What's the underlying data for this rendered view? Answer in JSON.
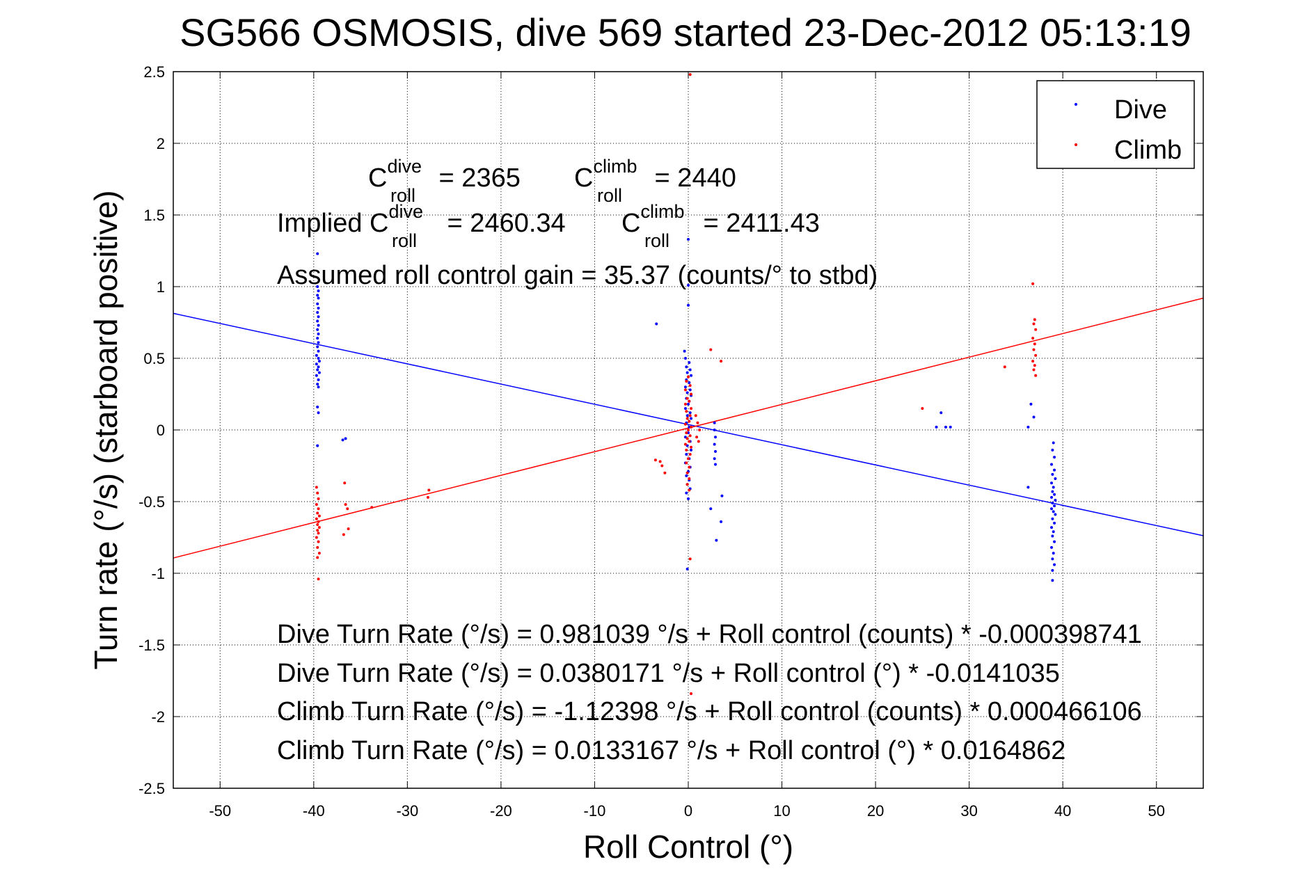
{
  "chart_data": {
    "type": "scatter",
    "title": "SG566 OSMOSIS, dive 569 started 23-Dec-2012 05:13:19",
    "xlabel": "Roll Control (°)",
    "ylabel": "Turn rate (°/s)  (starboard positive)",
    "xlim": [
      -55,
      55
    ],
    "ylim": [
      -2.5,
      2.5
    ],
    "xticks": [
      "-50",
      "-40",
      "-30",
      "-20",
      "-10",
      "0",
      "10",
      "20",
      "30",
      "40",
      "50"
    ],
    "yticks": [
      "-2.5",
      "-2",
      "-1.5",
      "-1",
      "-0.5",
      "0",
      "0.5",
      "1",
      "1.5",
      "2",
      "2.5"
    ],
    "grid": true,
    "legend": {
      "placement": "top-right",
      "entries": [
        {
          "name": "Dive",
          "color": "#0000ff"
        },
        {
          "name": "Climb",
          "color": "#ff0000"
        }
      ]
    },
    "series": [
      {
        "name": "Dive",
        "color": "#0000ff",
        "points": [
          [
            -39.6,
            1.23
          ],
          [
            -39.6,
            1.0
          ],
          [
            -39.5,
            0.97
          ],
          [
            -39.6,
            0.94
          ],
          [
            -39.5,
            0.92
          ],
          [
            -39.6,
            0.88
          ],
          [
            -39.5,
            0.85
          ],
          [
            -39.6,
            0.82
          ],
          [
            -39.5,
            0.79
          ],
          [
            -39.6,
            0.76
          ],
          [
            -39.5,
            0.73
          ],
          [
            -39.6,
            0.7
          ],
          [
            -39.5,
            0.67
          ],
          [
            -39.6,
            0.64
          ],
          [
            -39.5,
            0.61
          ],
          [
            -39.6,
            0.58
          ],
          [
            -39.5,
            0.55
          ],
          [
            -39.7,
            0.52
          ],
          [
            -39.5,
            0.5
          ],
          [
            -39.4,
            0.48
          ],
          [
            -39.7,
            0.46
          ],
          [
            -39.5,
            0.44
          ],
          [
            -39.6,
            0.42
          ],
          [
            -39.4,
            0.4
          ],
          [
            -39.7,
            0.38
          ],
          [
            -39.5,
            0.35
          ],
          [
            -39.6,
            0.32
          ],
          [
            -39.5,
            0.3
          ],
          [
            -39.6,
            0.16
          ],
          [
            -39.5,
            0.12
          ],
          [
            -39.6,
            -0.11
          ],
          [
            -36.9,
            -0.07
          ],
          [
            -36.6,
            -0.06
          ],
          [
            -3.4,
            0.74
          ],
          [
            0.0,
            1.33
          ],
          [
            0.0,
            1.01
          ],
          [
            0.0,
            0.87
          ],
          [
            -0.4,
            0.55
          ],
          [
            -0.3,
            0.5
          ],
          [
            0.1,
            0.47
          ],
          [
            -0.2,
            0.44
          ],
          [
            0.2,
            0.42
          ],
          [
            -0.1,
            0.4
          ],
          [
            0.3,
            0.38
          ],
          [
            -0.2,
            0.35
          ],
          [
            0.1,
            0.33
          ],
          [
            -0.3,
            0.3
          ],
          [
            0.2,
            0.28
          ],
          [
            -0.1,
            0.26
          ],
          [
            0.3,
            0.24
          ],
          [
            -0.2,
            0.22
          ],
          [
            0.1,
            0.2
          ],
          [
            0.0,
            0.18
          ],
          [
            -0.3,
            0.15
          ],
          [
            0.2,
            0.12
          ],
          [
            -0.1,
            0.1
          ],
          [
            0.3,
            0.08
          ],
          [
            -0.2,
            0.05
          ],
          [
            0.1,
            0.02
          ],
          [
            0.0,
            -0.02
          ],
          [
            -0.3,
            -0.05
          ],
          [
            0.2,
            -0.08
          ],
          [
            -0.1,
            -0.11
          ],
          [
            0.3,
            -0.14
          ],
          [
            -0.2,
            -0.17
          ],
          [
            0.1,
            -0.2
          ],
          [
            -0.3,
            -0.23
          ],
          [
            0.2,
            -0.26
          ],
          [
            0.0,
            -0.29
          ],
          [
            -0.2,
            -0.32
          ],
          [
            0.1,
            -0.35
          ],
          [
            -0.1,
            -0.38
          ],
          [
            0.2,
            -0.41
          ],
          [
            -0.2,
            -0.44
          ],
          [
            0.0,
            -0.48
          ],
          [
            -0.1,
            -0.97
          ],
          [
            2.8,
            0.05
          ],
          [
            2.8,
            0.0
          ],
          [
            2.9,
            -0.05
          ],
          [
            2.8,
            -0.1
          ],
          [
            2.9,
            -0.15
          ],
          [
            2.8,
            -0.2
          ],
          [
            2.9,
            -0.24
          ],
          [
            3.6,
            -0.46
          ],
          [
            2.4,
            -0.55
          ],
          [
            3.5,
            -0.64
          ],
          [
            3.0,
            -0.77
          ],
          [
            26.5,
            0.02
          ],
          [
            27.0,
            0.12
          ],
          [
            27.5,
            0.02
          ],
          [
            28.0,
            0.02
          ],
          [
            36.3,
            0.02
          ],
          [
            36.6,
            0.18
          ],
          [
            36.9,
            0.09
          ],
          [
            36.3,
            -0.4
          ],
          [
            39.0,
            -0.09
          ],
          [
            38.9,
            -0.14
          ],
          [
            39.1,
            -0.19
          ],
          [
            38.8,
            -0.24
          ],
          [
            39.1,
            -0.28
          ],
          [
            38.9,
            -0.31
          ],
          [
            39.2,
            -0.34
          ],
          [
            38.8,
            -0.37
          ],
          [
            39.0,
            -0.4
          ],
          [
            38.9,
            -0.43
          ],
          [
            39.1,
            -0.45
          ],
          [
            38.8,
            -0.47
          ],
          [
            39.2,
            -0.49
          ],
          [
            38.9,
            -0.51
          ],
          [
            39.1,
            -0.53
          ],
          [
            38.8,
            -0.55
          ],
          [
            39.0,
            -0.57
          ],
          [
            39.2,
            -0.59
          ],
          [
            38.9,
            -0.62
          ],
          [
            39.1,
            -0.65
          ],
          [
            38.8,
            -0.68
          ],
          [
            39.0,
            -0.71
          ],
          [
            38.9,
            -0.74
          ],
          [
            39.1,
            -0.78
          ],
          [
            38.8,
            -0.82
          ],
          [
            39.0,
            -0.86
          ],
          [
            38.9,
            -0.9
          ],
          [
            39.1,
            -0.94
          ],
          [
            38.9,
            -0.98
          ],
          [
            38.9,
            -1.05
          ]
        ],
        "fit": {
          "intercept": 0.0380171,
          "slope": -0.0141035
        }
      },
      {
        "name": "Climb",
        "color": "#ff0000",
        "points": [
          [
            -39.7,
            -0.4
          ],
          [
            -39.6,
            -0.44
          ],
          [
            -39.5,
            -0.48
          ],
          [
            -39.7,
            -0.52
          ],
          [
            -39.5,
            -0.55
          ],
          [
            -39.6,
            -0.58
          ],
          [
            -39.4,
            -0.6
          ],
          [
            -39.7,
            -0.62
          ],
          [
            -39.5,
            -0.64
          ],
          [
            -39.6,
            -0.66
          ],
          [
            -39.4,
            -0.68
          ],
          [
            -39.6,
            -0.7
          ],
          [
            -39.5,
            -0.72
          ],
          [
            -39.7,
            -0.75
          ],
          [
            -39.5,
            -0.78
          ],
          [
            -39.6,
            -0.82
          ],
          [
            -39.4,
            -0.86
          ],
          [
            -39.6,
            -0.89
          ],
          [
            -39.5,
            -1.04
          ],
          [
            -36.7,
            -0.37
          ],
          [
            -36.6,
            -0.52
          ],
          [
            -36.4,
            -0.55
          ],
          [
            -36.8,
            -0.73
          ],
          [
            -36.3,
            -0.69
          ],
          [
            -33.8,
            -0.54
          ],
          [
            -27.7,
            -0.42
          ],
          [
            -27.8,
            -0.47
          ],
          [
            0.2,
            2.48
          ],
          [
            2.4,
            0.56
          ],
          [
            3.5,
            0.48
          ],
          [
            -3.5,
            -0.21
          ],
          [
            -3.0,
            -0.22
          ],
          [
            -2.8,
            -0.25
          ],
          [
            -2.5,
            -0.3
          ],
          [
            0.0,
            0.37
          ],
          [
            -0.2,
            0.34
          ],
          [
            0.2,
            0.31
          ],
          [
            -0.3,
            0.28
          ],
          [
            0.3,
            0.25
          ],
          [
            -0.1,
            0.22
          ],
          [
            0.1,
            0.2
          ],
          [
            -0.3,
            0.18
          ],
          [
            0.3,
            0.15
          ],
          [
            -0.2,
            0.13
          ],
          [
            0.2,
            0.1
          ],
          [
            -0.1,
            0.08
          ],
          [
            0.1,
            0.06
          ],
          [
            -0.3,
            0.04
          ],
          [
            0.3,
            0.02
          ],
          [
            0.0,
            0.0
          ],
          [
            -0.2,
            -0.02
          ],
          [
            0.2,
            -0.04
          ],
          [
            -0.1,
            -0.06
          ],
          [
            0.1,
            -0.08
          ],
          [
            -0.3,
            -0.1
          ],
          [
            0.3,
            -0.12
          ],
          [
            -0.2,
            -0.14
          ],
          [
            0.2,
            -0.17
          ],
          [
            0.0,
            -0.2
          ],
          [
            -0.2,
            -0.23
          ],
          [
            0.1,
            -0.26
          ],
          [
            -0.1,
            -0.3
          ],
          [
            0.1,
            -0.34
          ],
          [
            -0.1,
            -0.38
          ],
          [
            0.1,
            -0.42
          ],
          [
            0.2,
            -0.9
          ],
          [
            0.3,
            -1.84
          ],
          [
            0.8,
            0.1
          ],
          [
            1.0,
            0.05
          ],
          [
            1.2,
            0.0
          ],
          [
            0.9,
            -0.05
          ],
          [
            1.1,
            -0.08
          ],
          [
            25.0,
            0.15
          ],
          [
            33.8,
            0.44
          ],
          [
            36.8,
            1.02
          ],
          [
            37.0,
            0.77
          ],
          [
            36.9,
            0.74
          ],
          [
            37.1,
            0.7
          ],
          [
            36.8,
            0.64
          ],
          [
            37.0,
            0.6
          ],
          [
            36.9,
            0.56
          ],
          [
            37.1,
            0.52
          ],
          [
            36.8,
            0.48
          ],
          [
            37.0,
            0.45
          ],
          [
            36.9,
            0.42
          ],
          [
            37.1,
            0.38
          ]
        ],
        "fit": {
          "intercept": 0.0133167,
          "slope": 0.0164862
        }
      }
    ],
    "annotations": {
      "c_dive_label": "C",
      "c_dive_sup": "dive",
      "c_dive_sub": "roll",
      "c_dive_val": " = 2365",
      "c_climb_label": "C",
      "c_climb_sup": "climb",
      "c_climb_sub": "roll",
      "c_climb_val": " = 2440",
      "implied_prefix": "Implied C",
      "implied_dive_sup": "dive",
      "implied_dive_sub": "roll",
      "implied_dive_val": " = 2460.34",
      "implied_climb_label": "C",
      "implied_climb_sup": "climb",
      "implied_climb_sub": "roll",
      "implied_climb_val": " = 2411.43",
      "gain": "Assumed roll control gain = 35.37 (counts/° to stbd)",
      "eq1": "Dive Turn Rate (°/s) = 0.981039 °/s + Roll control (counts) * -0.000398741",
      "eq2": "Dive Turn Rate (°/s) = 0.0380171 °/s + Roll control (°) * -0.0141035",
      "eq3": "Climb Turn Rate (°/s) = -1.12398 °/s + Roll control (counts) * 0.000466106",
      "eq4": "Climb Turn Rate (°/s) = 0.0133167 °/s + Roll control (°) * 0.0164862"
    }
  }
}
